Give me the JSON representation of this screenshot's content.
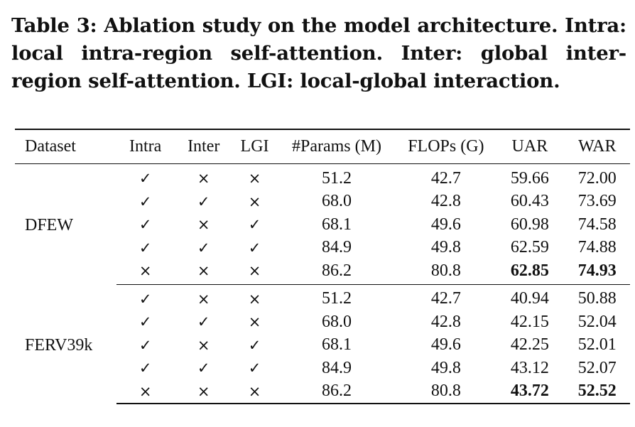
{
  "caption": "Table 3: Ablation study on the model architecture. Intra: local intra-region self-attention. Inter: global inter-region self-attention. LGI: local-global interaction.",
  "table": {
    "headers": {
      "dataset": "Dataset",
      "intra": "Intra",
      "inter": "Inter",
      "lgi": "LGI",
      "params": "#Params (M)",
      "flops": "FLOPs (G)",
      "uar": "UAR",
      "war": "WAR"
    },
    "groups": [
      {
        "dataset": "DFEW",
        "rows": [
          {
            "intra": "✓",
            "inter": "×",
            "lgi": "×",
            "params": "51.2",
            "flops": "42.7",
            "uar": "59.66",
            "war": "72.00"
          },
          {
            "intra": "✓",
            "inter": "✓",
            "lgi": "×",
            "params": "68.0",
            "flops": "42.8",
            "uar": "60.43",
            "war": "73.69"
          },
          {
            "intra": "✓",
            "inter": "×",
            "lgi": "✓",
            "params": "68.1",
            "flops": "49.6",
            "uar": "60.98",
            "war": "74.58"
          },
          {
            "intra": "✓",
            "inter": "✓",
            "lgi": "✓",
            "params": "84.9",
            "flops": "49.8",
            "uar": "62.59",
            "war": "74.88"
          },
          {
            "intra": "×",
            "inter": "×",
            "lgi": "×",
            "params": "86.2",
            "flops": "80.8",
            "uar": "62.85",
            "war": "74.93"
          }
        ]
      },
      {
        "dataset": "FERV39k",
        "rows": [
          {
            "intra": "✓",
            "inter": "×",
            "lgi": "×",
            "params": "51.2",
            "flops": "42.7",
            "uar": "40.94",
            "war": "50.88"
          },
          {
            "intra": "✓",
            "inter": "✓",
            "lgi": "×",
            "params": "68.0",
            "flops": "42.8",
            "uar": "42.15",
            "war": "52.04"
          },
          {
            "intra": "✓",
            "inter": "×",
            "lgi": "✓",
            "params": "68.1",
            "flops": "49.6",
            "uar": "42.25",
            "war": "52.01"
          },
          {
            "intra": "✓",
            "inter": "✓",
            "lgi": "✓",
            "params": "84.9",
            "flops": "49.8",
            "uar": "43.12",
            "war": "52.07"
          },
          {
            "intra": "×",
            "inter": "×",
            "lgi": "×",
            "params": "86.2",
            "flops": "80.8",
            "uar": "43.72",
            "war": "52.52"
          }
        ]
      }
    ]
  }
}
